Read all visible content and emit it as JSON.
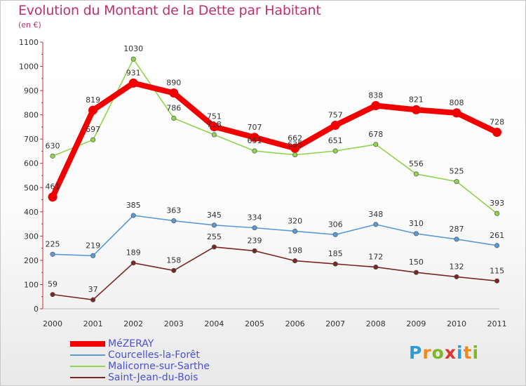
{
  "header": {
    "title": "Evolution du Montant de la Dette par Habitant",
    "subtitle": "(en €)"
  },
  "logo": {
    "letters": [
      "P",
      "r",
      "o",
      "x",
      "i",
      "t",
      "i"
    ],
    "colors": [
      "#2f9ad6",
      "#f08a1c",
      "#7ab828",
      "#e2332a",
      "#2f9ad6",
      "#f08a1c",
      "#7ab828"
    ]
  },
  "chart_data": {
    "type": "line",
    "title": "Evolution du Montant de la Dette par Habitant",
    "xlabel": "",
    "ylabel": "",
    "categories": [
      "2000",
      "2001",
      "2002",
      "2003",
      "2004",
      "2005",
      "2006",
      "2007",
      "2008",
      "2009",
      "2010",
      "2011"
    ],
    "ylim": [
      0,
      1100
    ],
    "yticks": [
      0,
      100,
      200,
      300,
      400,
      500,
      600,
      700,
      800,
      900,
      1000,
      1100
    ],
    "grid": false,
    "legend_position": "bottom-left",
    "series": [
      {
        "name": "MéZERAY",
        "color": "#f00000",
        "values": [
          461,
          819,
          931,
          890,
          751,
          707,
          662,
          757,
          838,
          821,
          808,
          728
        ]
      },
      {
        "name": "Courcelles-la-Forêt",
        "color": "#5b9bd5",
        "values": [
          225,
          219,
          385,
          363,
          345,
          334,
          320,
          306,
          348,
          310,
          287,
          261
        ]
      },
      {
        "name": "Malicorne-sur-Sarthe",
        "color": "#8ed44c",
        "values": [
          630,
          697,
          1030,
          786,
          718,
          651,
          635,
          651,
          678,
          556,
          525,
          393
        ]
      },
      {
        "name": "Saint-Jean-du-Bois",
        "color": "#7a2626",
        "values": [
          59,
          37,
          189,
          158,
          255,
          239,
          198,
          185,
          172,
          150,
          132,
          115
        ]
      }
    ]
  }
}
